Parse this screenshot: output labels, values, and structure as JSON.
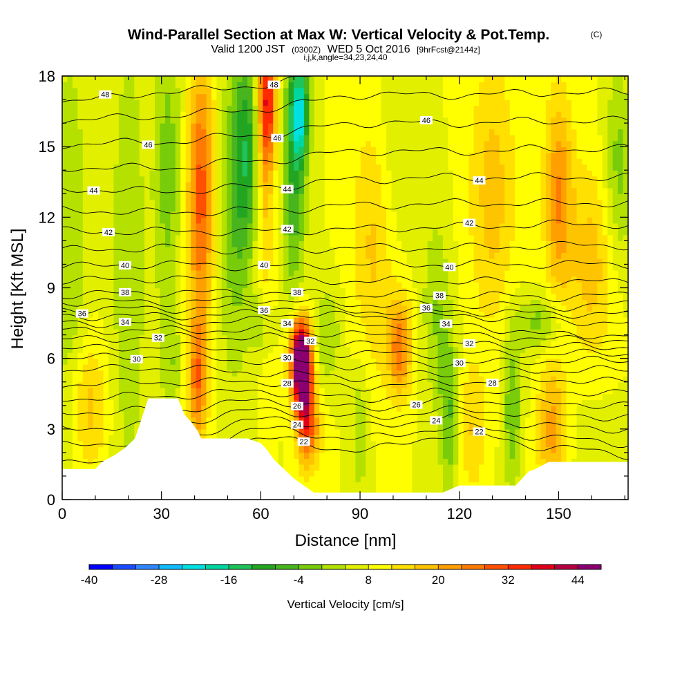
{
  "title": {
    "main": "Wind-Parallel Section at Max W: Vertical Velocity & Pot.Temp.",
    "unit_tag": "(C)",
    "valid_prefix": "Valid 1200 JST",
    "valid_utc": "(0300Z)",
    "valid_date": "WED 5 Oct 2016",
    "forecast": "[9hrFcst@2144z]",
    "ijk": "i,j,k,angle=34,23,24,40"
  },
  "chart_data": {
    "type": "heatmap",
    "xlabel": "Distance [nm]",
    "ylabel": "Height [Kft MSL]",
    "xlim": [
      0,
      171
    ],
    "ylim": [
      0,
      18
    ],
    "x_ticks": [
      "0",
      "30",
      "60",
      "90",
      "120",
      "150"
    ],
    "y_ticks": [
      "0",
      "3",
      "6",
      "9",
      "12",
      "15",
      "18"
    ],
    "colorbar": {
      "title": "Vertical Velocity [cm/s]",
      "min": -40,
      "max": 48,
      "step": 4,
      "tick_labels": [
        "-40",
        "-28",
        "-16",
        "-4",
        "8",
        "20",
        "32",
        "44"
      ],
      "colors": [
        "#0000ff",
        "#1a4cff",
        "#2f86ff",
        "#10bcff",
        "#00e0e0",
        "#00d7a0",
        "#1ec35a",
        "#22a622",
        "#48b41e",
        "#78cc0a",
        "#b4e100",
        "#e2f000",
        "#ffff00",
        "#ffe000",
        "#ffc400",
        "#ffa000",
        "#ff7a00",
        "#ff5000",
        "#ff2a00",
        "#e00018",
        "#b40040",
        "#8a0070"
      ]
    },
    "velocity_features": [
      {
        "x": 2,
        "z": 11,
        "w": -8,
        "sx": 4,
        "sz": 6
      },
      {
        "x": 20,
        "z": 10,
        "w": -7,
        "sx": 4,
        "sz": 8
      },
      {
        "x": 32,
        "z": 14,
        "w": -10,
        "sx": 3,
        "sz": 5
      },
      {
        "x": 33,
        "z": 5.5,
        "w": -6,
        "sx": 2,
        "sz": 1.5
      },
      {
        "x": 42,
        "z": 13,
        "w": 22,
        "sx": 3,
        "sz": 4
      },
      {
        "x": 41,
        "z": 5,
        "w": 18,
        "sx": 2,
        "sz": 2
      },
      {
        "x": 52,
        "z": 12,
        "w": -10,
        "sx": 4,
        "sz": 5
      },
      {
        "x": 56,
        "z": 15,
        "w": -15,
        "sx": 3,
        "sz": 3
      },
      {
        "x": 62,
        "z": 17,
        "w": 26,
        "sx": 2,
        "sz": 2
      },
      {
        "x": 61,
        "z": 13,
        "w": 10,
        "sx": 2,
        "sz": 4
      },
      {
        "x": 70,
        "z": 14,
        "w": -16,
        "sx": 2.5,
        "sz": 4
      },
      {
        "x": 72,
        "z": 16.5,
        "w": -22,
        "sx": 2,
        "sz": 1.5
      },
      {
        "x": 60,
        "z": 7.5,
        "w": -8,
        "sx": 2,
        "sz": 1
      },
      {
        "x": 72,
        "z": 6.0,
        "w": 44,
        "sx": 2.2,
        "sz": 1.2
      },
      {
        "x": 73,
        "z": 4.5,
        "w": 22,
        "sx": 2,
        "sz": 1.6
      },
      {
        "x": 75,
        "z": 3.0,
        "w": 14,
        "sx": 2.5,
        "sz": 1.2
      },
      {
        "x": 80,
        "z": 7,
        "w": -8,
        "sx": 3,
        "sz": 1.5
      },
      {
        "x": 95,
        "z": 11,
        "w": 10,
        "sx": 5,
        "sz": 4
      },
      {
        "x": 90,
        "z": 3,
        "w": -8,
        "sx": 2,
        "sz": 2
      },
      {
        "x": 102,
        "z": 6.5,
        "w": 18,
        "sx": 2.5,
        "sz": 1.5
      },
      {
        "x": 100,
        "z": 14,
        "w": -6,
        "sx": 4,
        "sz": 4
      },
      {
        "x": 113,
        "z": 8,
        "w": -8,
        "sx": 3,
        "sz": 3
      },
      {
        "x": 117,
        "z": 3.5,
        "w": -12,
        "sx": 2,
        "sz": 2.5
      },
      {
        "x": 124,
        "z": 3,
        "w": 8,
        "sx": 3,
        "sz": 2
      },
      {
        "x": 130,
        "z": 13,
        "w": 10,
        "sx": 5,
        "sz": 4
      },
      {
        "x": 136,
        "z": 4,
        "w": -12,
        "sx": 2,
        "sz": 2.5
      },
      {
        "x": 144,
        "z": 7.5,
        "w": -10,
        "sx": 5,
        "sz": 0.8
      },
      {
        "x": 150,
        "z": 13,
        "w": 16,
        "sx": 3,
        "sz": 3
      },
      {
        "x": 148,
        "z": 3,
        "w": 14,
        "sx": 3,
        "sz": 2
      },
      {
        "x": 160,
        "z": 10,
        "w": 10,
        "sx": 5,
        "sz": 3
      },
      {
        "x": 168,
        "z": 14,
        "w": -10,
        "sx": 3,
        "sz": 3
      },
      {
        "x": 160,
        "z": 3,
        "w": -2,
        "sx": 6,
        "sz": 2
      },
      {
        "x": 8,
        "z": 4,
        "w": 10,
        "sx": 4,
        "sz": 2
      }
    ],
    "terrain": [
      [
        0,
        1.3
      ],
      [
        10,
        1.3
      ],
      [
        12,
        1.6
      ],
      [
        16,
        1.9
      ],
      [
        19,
        2.2
      ],
      [
        22,
        2.6
      ],
      [
        26,
        4.3
      ],
      [
        35,
        4.3
      ],
      [
        37,
        3.6
      ],
      [
        39,
        3.3
      ],
      [
        41,
        2.9
      ],
      [
        42,
        2.6
      ],
      [
        44,
        2.6
      ],
      [
        46,
        2.6
      ],
      [
        48,
        2.6
      ],
      [
        56,
        2.6
      ],
      [
        60,
        2.4
      ],
      [
        62,
        2.1
      ],
      [
        64,
        1.7
      ],
      [
        67,
        1.3
      ],
      [
        70,
        0.9
      ],
      [
        73,
        0.6
      ],
      [
        76,
        0.3
      ],
      [
        110,
        0.3
      ],
      [
        115,
        0.3
      ],
      [
        120,
        0.6
      ],
      [
        137,
        0.6
      ],
      [
        139,
        0.9
      ],
      [
        141,
        1.2
      ],
      [
        143,
        1.3
      ],
      [
        147,
        1.6
      ],
      [
        160,
        1.6
      ],
      [
        171,
        1.6
      ]
    ],
    "isentropes": {
      "levels": [
        22,
        23,
        24,
        25,
        26,
        27,
        28,
        29,
        30,
        31,
        32,
        33,
        34,
        35,
        36,
        37,
        38,
        39,
        40,
        41,
        42,
        43,
        44,
        45,
        46,
        47,
        48
      ],
      "base_x": [
        0,
        30,
        60,
        90,
        120,
        150,
        171
      ],
      "heights": [
        [
          0.5,
          1.0,
          2.6,
          2.1,
          2.8,
          2.2,
          1.9
        ],
        [
          1.5,
          1.8,
          3.0,
          2.6,
          3.1,
          2.6,
          2.4
        ],
        [
          2.3,
          2.5,
          3.4,
          3.1,
          3.5,
          3.1,
          3.0
        ],
        [
          3.0,
          3.2,
          3.8,
          3.5,
          3.8,
          3.6,
          3.5
        ],
        [
          3.7,
          3.8,
          4.2,
          3.9,
          4.2,
          4.1,
          4.0
        ],
        [
          4.3,
          4.4,
          4.6,
          4.3,
          4.6,
          4.6,
          4.5
        ],
        [
          4.9,
          5.0,
          5.0,
          4.8,
          5.0,
          5.1,
          5.0
        ],
        [
          5.5,
          5.6,
          5.4,
          5.2,
          5.4,
          5.5,
          5.5
        ],
        [
          6.0,
          6.1,
          5.9,
          5.7,
          5.8,
          5.9,
          5.9
        ],
        [
          6.4,
          6.5,
          6.4,
          6.2,
          6.2,
          6.2,
          6.2
        ],
        [
          6.8,
          6.9,
          6.9,
          6.6,
          6.6,
          6.5,
          6.5
        ],
        [
          7.2,
          7.2,
          7.2,
          7.0,
          7.0,
          6.8,
          6.8
        ],
        [
          7.5,
          7.5,
          7.6,
          7.4,
          7.4,
          7.0,
          7.0
        ],
        [
          7.8,
          7.8,
          7.9,
          7.8,
          7.8,
          7.6,
          7.5
        ],
        [
          8.1,
          8.1,
          8.2,
          8.0,
          8.0,
          7.9,
          7.9
        ],
        [
          8.4,
          8.4,
          8.5,
          8.3,
          8.3,
          8.2,
          8.3
        ],
        [
          8.7,
          8.8,
          8.8,
          8.7,
          8.7,
          8.6,
          8.7
        ],
        [
          9.3,
          9.4,
          9.3,
          9.3,
          9.3,
          9.2,
          9.3
        ],
        [
          9.9,
          10.0,
          9.9,
          10.0,
          10.0,
          10.0,
          10.0
        ],
        [
          10.6,
          10.7,
          10.6,
          10.7,
          10.7,
          10.8,
          10.8
        ],
        [
          11.4,
          11.4,
          11.4,
          11.5,
          11.6,
          11.7,
          11.7
        ],
        [
          12.3,
          12.2,
          12.3,
          12.5,
          12.6,
          12.6,
          12.6
        ],
        [
          13.2,
          13.1,
          13.3,
          13.6,
          13.7,
          13.7,
          13.7
        ],
        [
          14.1,
          14.1,
          14.4,
          14.8,
          14.8,
          14.9,
          14.9
        ],
        [
          15.1,
          15.2,
          15.5,
          16.0,
          16.0,
          16.1,
          16.1
        ],
        [
          16.1,
          16.3,
          16.6,
          17.2,
          17.2,
          17.3,
          17.3
        ],
        [
          16.9,
          17.3,
          17.6,
          18.4,
          18.4,
          18.5,
          18.5
        ]
      ],
      "labels": [
        {
          "text": "48",
          "x": 13,
          "level": 48
        },
        {
          "text": "46",
          "x": 26,
          "level": 46
        },
        {
          "text": "44",
          "x": 9.5,
          "level": 44
        },
        {
          "text": "42",
          "x": 14,
          "level": 42
        },
        {
          "text": "40",
          "x": 19,
          "level": 40
        },
        {
          "text": "38",
          "x": 19,
          "level": 38
        },
        {
          "text": "36",
          "x": 6,
          "level": 36
        },
        {
          "text": "34",
          "x": 19,
          "level": 34
        },
        {
          "text": "32",
          "x": 29,
          "level": 32
        },
        {
          "text": "30",
          "x": 22.5,
          "level": 30
        },
        {
          "text": "48",
          "x": 64,
          "level": 48
        },
        {
          "text": "46",
          "x": 65,
          "level": 46
        },
        {
          "text": "44",
          "x": 68,
          "level": 44
        },
        {
          "text": "42",
          "x": 68,
          "level": 42
        },
        {
          "text": "40",
          "x": 61,
          "level": 40
        },
        {
          "text": "38",
          "x": 71,
          "level": 38
        },
        {
          "text": "36",
          "x": 61,
          "level": 36
        },
        {
          "text": "34",
          "x": 68,
          "level": 34
        },
        {
          "text": "32",
          "x": 75,
          "level": 32
        },
        {
          "text": "30",
          "x": 68,
          "level": 30
        },
        {
          "text": "28",
          "x": 68,
          "level": 28
        },
        {
          "text": "26",
          "x": 71,
          "level": 26
        },
        {
          "text": "24",
          "x": 71,
          "level": 24
        },
        {
          "text": "22",
          "x": 73,
          "level": 22
        },
        {
          "text": "46",
          "x": 110,
          "level": 46
        },
        {
          "text": "44",
          "x": 126,
          "level": 44
        },
        {
          "text": "42",
          "x": 123,
          "level": 42
        },
        {
          "text": "40",
          "x": 117,
          "level": 40
        },
        {
          "text": "38",
          "x": 114,
          "level": 38
        },
        {
          "text": "36",
          "x": 110,
          "level": 36
        },
        {
          "text": "34",
          "x": 116,
          "level": 34
        },
        {
          "text": "32",
          "x": 123,
          "level": 32
        },
        {
          "text": "30",
          "x": 120,
          "level": 30
        },
        {
          "text": "28",
          "x": 130,
          "level": 28
        },
        {
          "text": "26",
          "x": 107,
          "level": 26
        },
        {
          "text": "24",
          "x": 113,
          "level": 24
        },
        {
          "text": "22",
          "x": 126,
          "level": 22
        }
      ]
    }
  }
}
